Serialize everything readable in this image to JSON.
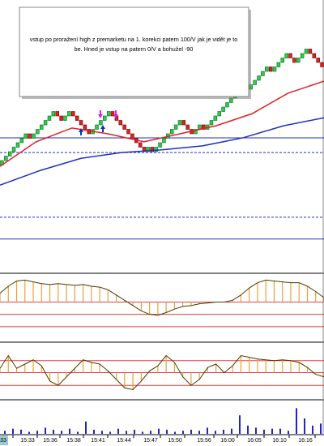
{
  "note": {
    "lines": [
      "vstup po proražení high z premarketu na 1. korekci patern 100/V  jak je vidět je to",
      "be. Hned je vstup na patern 0/V a bohužel -90"
    ]
  },
  "time_axis": {
    "labels": [
      "33",
      "15:33",
      "15:36",
      "15:38",
      "15:41",
      "15:44",
      "15:47",
      "15:50",
      "15:56",
      "16:00",
      "16:05",
      "16:10",
      "16:16"
    ]
  },
  "chart_data": [
    {
      "type": "renko",
      "ylim": [
        0,
        60
      ],
      "bricks": [
        24,
        25,
        26,
        27,
        28,
        29,
        30,
        29,
        30,
        31,
        32,
        33,
        34,
        35,
        34,
        33,
        34,
        35,
        34,
        33,
        32,
        31,
        30,
        31,
        32,
        33,
        34,
        35,
        34,
        33,
        32,
        31,
        30,
        29,
        28,
        27,
        26,
        27,
        26,
        27,
        28,
        29,
        30,
        31,
        32,
        33,
        32,
        31,
        30,
        31,
        32,
        31,
        32,
        33,
        34,
        35,
        36,
        37,
        38,
        39,
        40,
        41,
        40,
        41,
        42,
        43,
        44,
        45,
        44,
        45,
        46,
        47,
        48,
        47,
        46,
        47,
        48,
        49,
        48,
        47,
        46,
        45
      ],
      "up_color": "#33cc33",
      "down_color": "#dd2222",
      "series": [
        {
          "color": "#e02020",
          "values": [
            22.7,
            28.2,
            31.3,
            30,
            28.2,
            30,
            31.8,
            34.5,
            39.1,
            41.8
          ]
        },
        {
          "color": "#2030c0",
          "values": [
            18.5,
            21.8,
            24.5,
            25.8,
            26.4,
            27.3,
            29.1,
            31.8,
            33.6
          ]
        }
      ],
      "hlines": [
        {
          "value": 29.1,
          "dashed": false
        },
        {
          "value": 25.8,
          "dashed": true
        },
        {
          "value": 11.3,
          "dashed": true
        },
        {
          "value": 6.4,
          "dashed": false
        }
      ]
    },
    {
      "type": "histogram",
      "ylim": [
        -30,
        30
      ],
      "color": "#e8a13a",
      "hlines": [
        0,
        -14,
        -28
      ],
      "values": [
        10,
        18,
        24,
        25,
        23,
        21,
        20,
        21,
        20,
        19,
        20,
        18,
        17,
        14,
        8,
        2,
        -4,
        -10,
        -14,
        -15,
        -12,
        -8,
        -5,
        -4,
        -2,
        -1,
        0,
        0,
        2,
        8,
        16,
        22,
        25,
        24,
        23,
        22,
        22,
        18,
        12,
        5
      ]
    },
    {
      "type": "histogram",
      "ylim": [
        -30,
        30
      ],
      "color": "#e8a13a",
      "hlines": [
        14,
        0,
        -15
      ],
      "values": [
        5,
        20,
        5,
        10,
        15,
        8,
        -10,
        -15,
        -5,
        5,
        15,
        12,
        10,
        2,
        -8,
        -18,
        -20,
        -10,
        2,
        8,
        20,
        12,
        -5,
        -15,
        -8,
        6,
        10,
        0,
        8,
        20,
        18,
        16,
        15,
        14,
        15,
        14,
        12,
        6,
        -2,
        -5
      ]
    },
    {
      "type": "bar",
      "ylim": [
        0,
        30
      ],
      "color": "#2222cc",
      "values": [
        3,
        5,
        4,
        2,
        3,
        6,
        4,
        3,
        5,
        2,
        12,
        4,
        3,
        2,
        5,
        3,
        4,
        2,
        3,
        5,
        4,
        2,
        3,
        4,
        3,
        6,
        3,
        4,
        5,
        18,
        8,
        6,
        4,
        5,
        5,
        3,
        25,
        15,
        8,
        10
      ]
    }
  ]
}
